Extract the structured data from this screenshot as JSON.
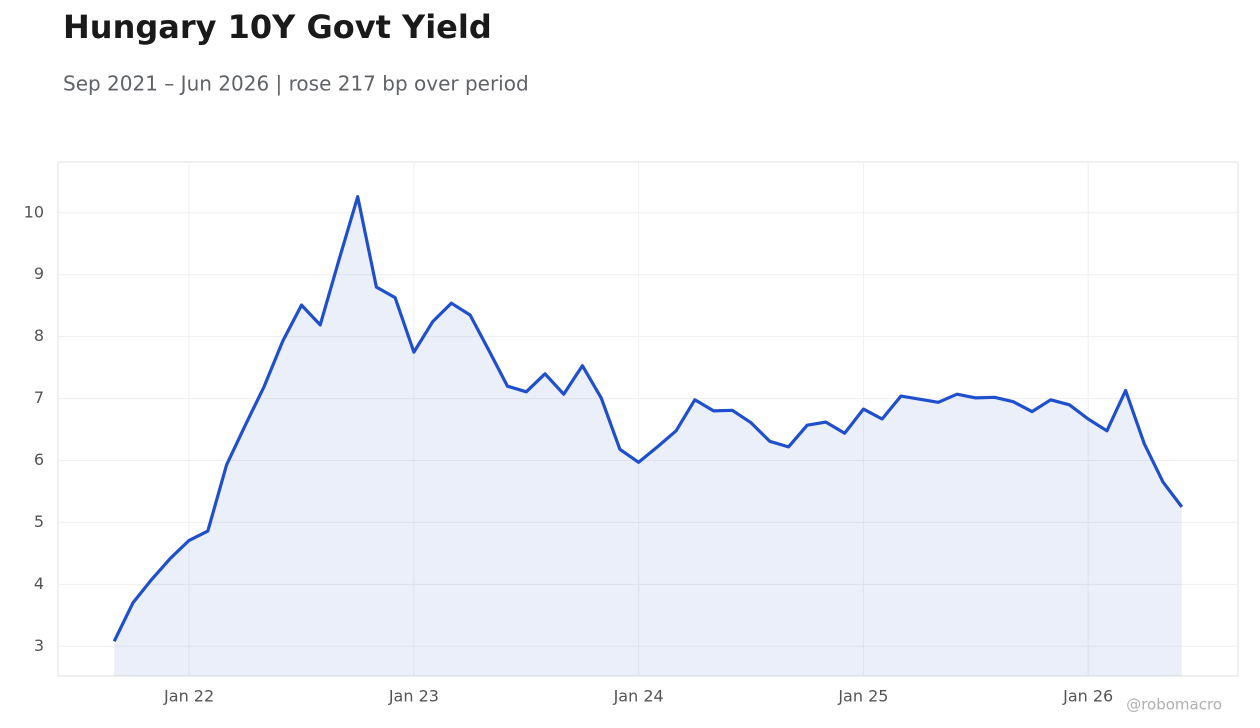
{
  "chart_data": {
    "type": "line",
    "title": "Hungary 10Y Govt Yield",
    "subtitle": "Sep 2021 – Jun 2026 | rose 217 bp over period",
    "watermark": "@robomacro",
    "x": [
      "2021-09",
      "2021-10",
      "2021-11",
      "2021-12",
      "2022-01",
      "2022-02",
      "2022-03",
      "2022-04",
      "2022-05",
      "2022-06",
      "2022-07",
      "2022-08",
      "2022-09",
      "2022-10",
      "2022-11",
      "2022-12",
      "2023-01",
      "2023-02",
      "2023-03",
      "2023-04",
      "2023-05",
      "2023-06",
      "2023-07",
      "2023-08",
      "2023-09",
      "2023-10",
      "2023-11",
      "2023-12",
      "2024-01",
      "2024-02",
      "2024-03",
      "2024-04",
      "2024-05",
      "2024-06",
      "2024-07",
      "2024-08",
      "2024-09",
      "2024-10",
      "2024-11",
      "2024-12",
      "2025-01",
      "2025-02",
      "2025-03",
      "2025-04",
      "2025-05",
      "2025-06",
      "2025-07",
      "2025-08",
      "2025-09",
      "2025-10",
      "2025-11",
      "2025-12",
      "2026-01",
      "2026-02",
      "2026-03",
      "2026-04",
      "2026-05",
      "2026-06"
    ],
    "series": [
      {
        "name": "Hungary 10Y",
        "color": "#1f4fcc",
        "values": [
          3.08,
          3.7,
          4.08,
          4.42,
          4.71,
          4.86,
          5.93,
          6.57,
          7.19,
          7.93,
          8.51,
          8.19,
          9.24,
          10.26,
          8.8,
          8.63,
          7.75,
          8.24,
          8.54,
          8.35,
          7.78,
          7.2,
          7.11,
          7.4,
          7.07,
          7.53,
          7.01,
          6.18,
          5.97,
          6.22,
          6.48,
          6.98,
          6.8,
          6.81,
          6.61,
          6.31,
          6.22,
          6.57,
          6.62,
          6.44,
          6.83,
          6.67,
          7.04,
          6.99,
          6.94,
          7.07,
          7.01,
          7.02,
          6.95,
          6.79,
          6.98,
          6.9,
          6.67,
          6.48,
          7.13,
          6.27,
          5.65,
          5.25
        ]
      }
    ],
    "xlim": [
      "2021-06",
      "2026-09"
    ],
    "xticks": [
      {
        "value": "2022-01",
        "label": "Jan 22"
      },
      {
        "value": "2023-01",
        "label": "Jan 23"
      },
      {
        "value": "2024-01",
        "label": "Jan 24"
      },
      {
        "value": "2025-01",
        "label": "Jan 25"
      },
      {
        "value": "2026-01",
        "label": "Jan 26"
      }
    ],
    "ylim": [
      2.52,
      10.82
    ],
    "yticks": [
      3,
      4,
      5,
      6,
      7,
      8,
      9,
      10
    ],
    "grid": true,
    "area": true
  }
}
